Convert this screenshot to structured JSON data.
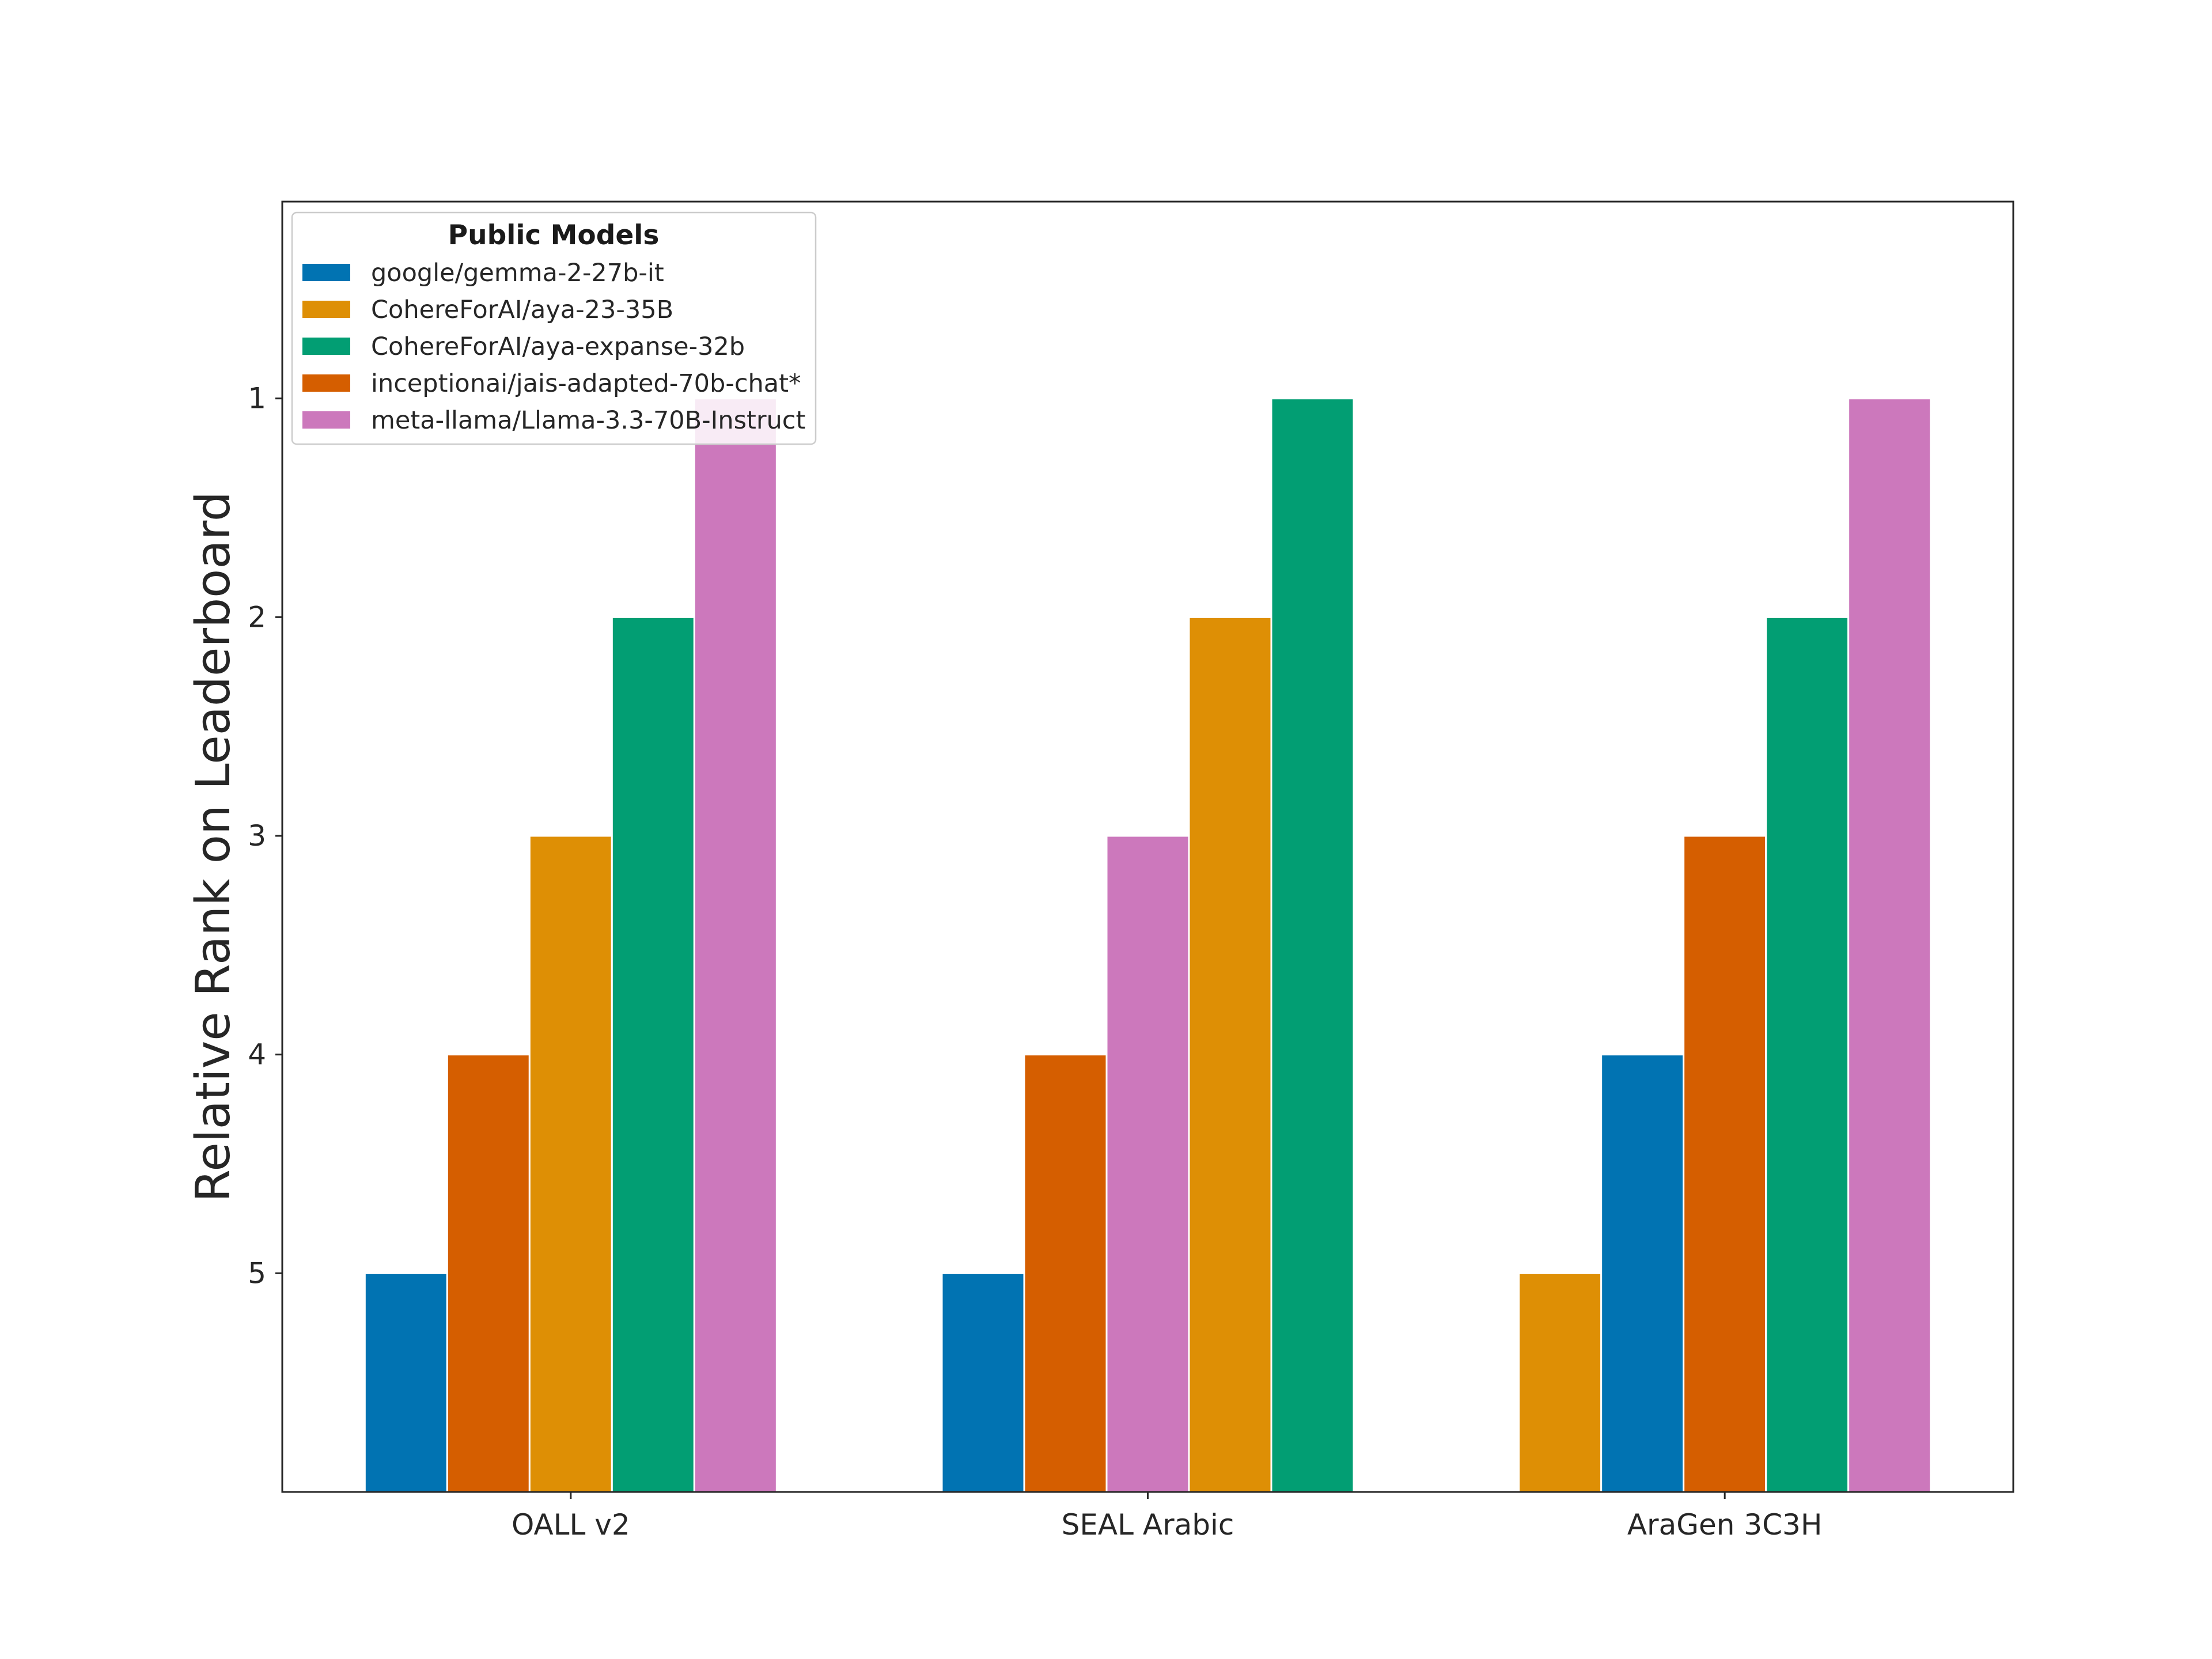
{
  "chart_data": {
    "type": "bar",
    "ylabel": "Relative Rank on Leaderboard",
    "ylim": [
      6,
      0.1
    ],
    "y_inverted": true,
    "yticks": [
      1,
      2,
      3,
      4,
      5
    ],
    "grid": false,
    "legend": {
      "title": "Public Models",
      "placement": "top-left"
    },
    "categories": [
      {
        "name": "OALL v2",
        "bars": [
          {
            "model": "google/gemma-2-27b-it",
            "rank": 5
          },
          {
            "model": "inceptionai/jais-adapted-70b-chat*",
            "rank": 4
          },
          {
            "model": "CohereForAI/aya-23-35B",
            "rank": 3
          },
          {
            "model": "CohereForAI/aya-expanse-32b",
            "rank": 2
          },
          {
            "model": "meta-llama/Llama-3.3-70B-Instruct",
            "rank": 1
          }
        ]
      },
      {
        "name": "SEAL Arabic",
        "bars": [
          {
            "model": "google/gemma-2-27b-it",
            "rank": 5
          },
          {
            "model": "inceptionai/jais-adapted-70b-chat*",
            "rank": 4
          },
          {
            "model": "meta-llama/Llama-3.3-70B-Instruct",
            "rank": 3
          },
          {
            "model": "CohereForAI/aya-23-35B",
            "rank": 2
          },
          {
            "model": "CohereForAI/aya-expanse-32b",
            "rank": 1
          }
        ]
      },
      {
        "name": "AraGen 3C3H",
        "bars": [
          {
            "model": "CohereForAI/aya-23-35B",
            "rank": 5
          },
          {
            "model": "google/gemma-2-27b-it",
            "rank": 4
          },
          {
            "model": "inceptionai/jais-adapted-70b-chat*",
            "rank": 3
          },
          {
            "model": "CohereForAI/aya-expanse-32b",
            "rank": 2
          },
          {
            "model": "meta-llama/Llama-3.3-70B-Instruct",
            "rank": 1
          }
        ]
      }
    ],
    "series": [
      {
        "name": "google/gemma-2-27b-it",
        "color": "#0173b2"
      },
      {
        "name": "CohereForAI/aya-23-35B",
        "color": "#de8f05"
      },
      {
        "name": "CohereForAI/aya-expanse-32b",
        "color": "#029e73"
      },
      {
        "name": "inceptionai/jais-adapted-70b-chat*",
        "color": "#d55e00"
      },
      {
        "name": "meta-llama/Llama-3.3-70B-Instruct",
        "color": "#cc78bc"
      }
    ]
  }
}
